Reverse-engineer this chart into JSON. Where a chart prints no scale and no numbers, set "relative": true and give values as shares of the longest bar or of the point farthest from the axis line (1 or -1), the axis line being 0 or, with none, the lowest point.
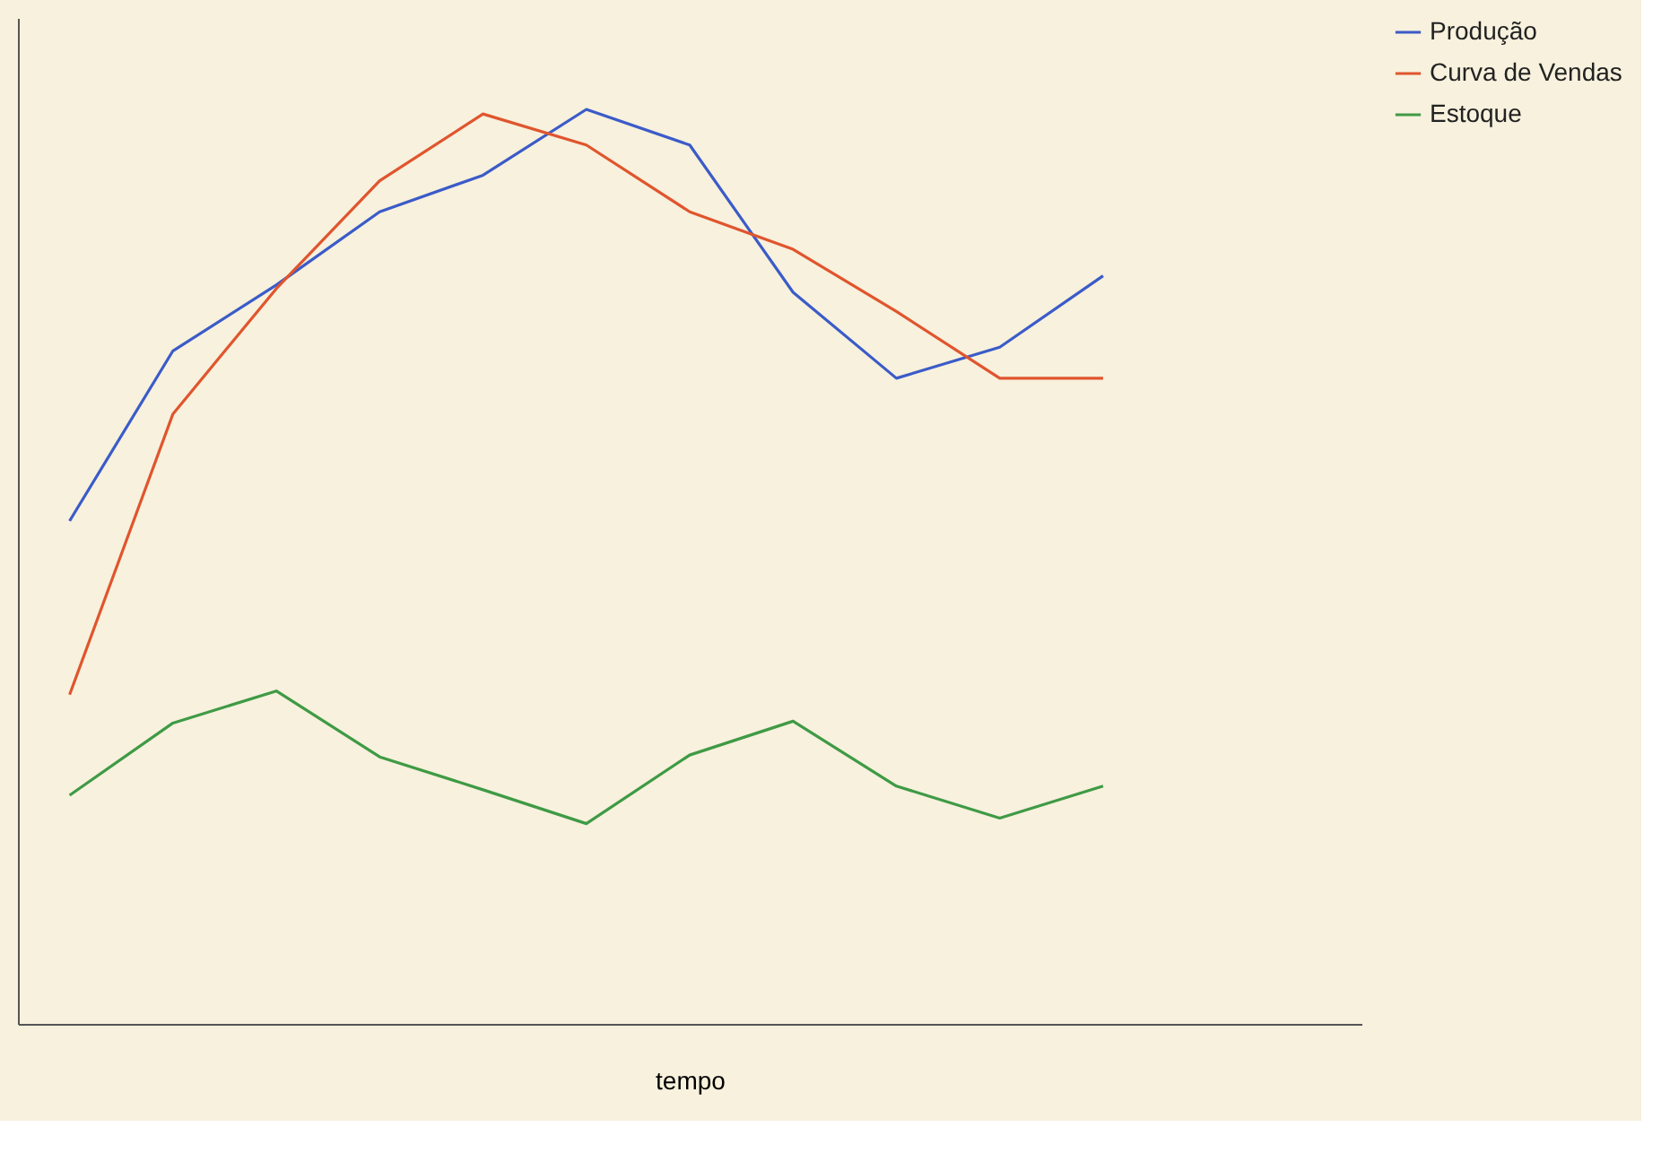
{
  "chart_data": {
    "type": "line",
    "relative": true,
    "xlabel": "tempo",
    "categories": [
      null,
      null,
      null,
      null,
      null,
      null,
      null,
      null,
      null,
      null,
      null
    ],
    "series": [
      {
        "name": "Produção",
        "color": "#3b5bc8",
        "values": [
          0.55,
          0.736,
          0.808,
          0.888,
          0.928,
          1.0,
          0.961,
          0.8,
          0.706,
          0.74,
          0.818
        ]
      },
      {
        "name": "Curva de Vendas",
        "color": "#e0552e",
        "values": [
          0.36,
          0.667,
          0.804,
          0.922,
          0.995,
          0.961,
          0.888,
          0.847,
          0.779,
          0.706,
          0.706
        ]
      },
      {
        "name": "Estoque",
        "color": "#3f9a45",
        "values": [
          0.25,
          0.329,
          0.364,
          0.292,
          0.256,
          0.219,
          0.294,
          0.331,
          0.26,
          0.225,
          0.26
        ]
      }
    ],
    "legend": "right",
    "grid": false,
    "marker": "none",
    "line_style": "solid",
    "tick_labels": false
  }
}
